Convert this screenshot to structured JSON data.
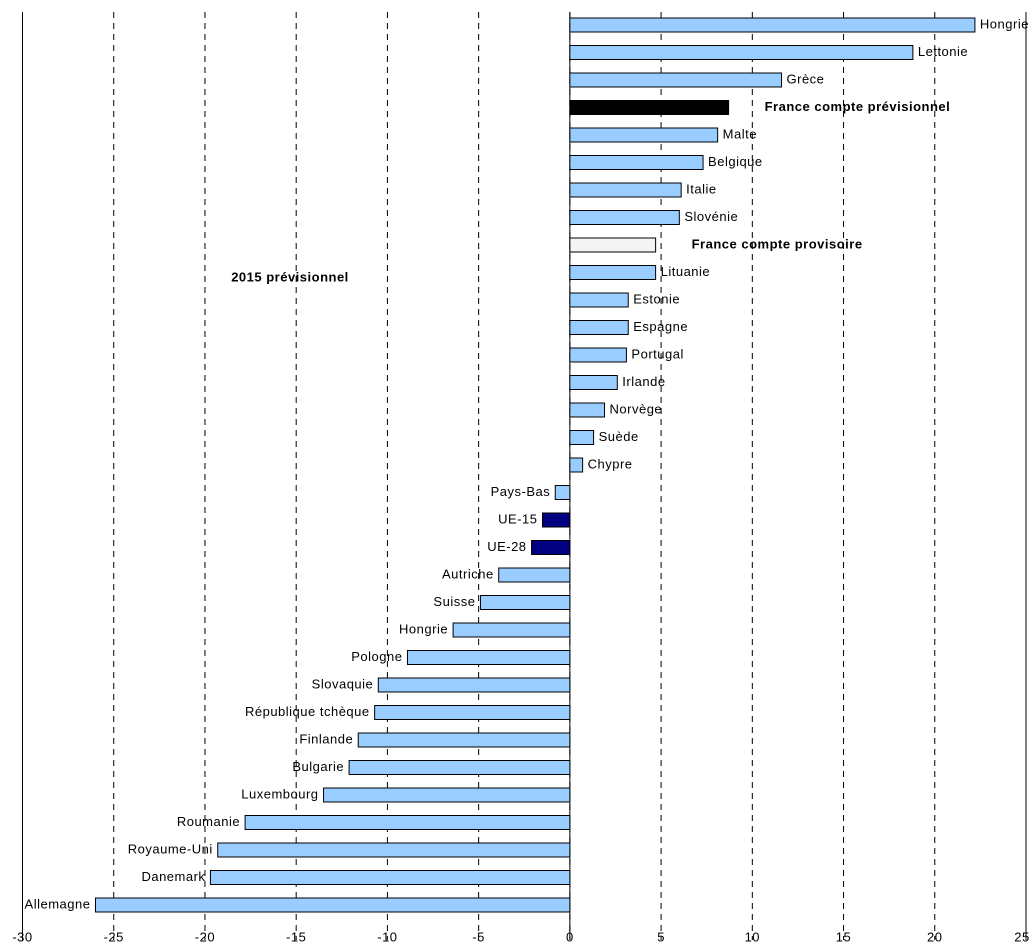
{
  "chart_data": {
    "type": "hbar",
    "annotation": "2015 prévisionnel",
    "categories": [
      "Hongrie",
      "Lettonie",
      "Grèce",
      "France compte prévisionnel",
      "Malte",
      "Belgique",
      "Italie",
      "Slovénie",
      "France compte provisoire",
      "Lituanie",
      "Estonie",
      "Espagne",
      "Portugal",
      "Irlande",
      "Norvège",
      "Suède",
      "Chypre",
      "Pays-Bas",
      "UE-15",
      "UE-28",
      "Autriche",
      "Suisse",
      "Hongrie",
      "Pologne",
      "Slovaquie",
      "République tchèque",
      "Finlande",
      "Bulgarie",
      "Luxembourg",
      "Roumanie",
      "Royaume-Uni",
      "Danemark",
      "Allemagne"
    ],
    "values": [
      22.2,
      18.8,
      11.6,
      8.7,
      8.1,
      7.3,
      6.1,
      6.0,
      4.7,
      4.7,
      3.2,
      3.2,
      3.1,
      2.6,
      1.9,
      1.3,
      0.7,
      -0.8,
      -1.5,
      -2.1,
      -3.9,
      -4.9,
      -6.4,
      -8.9,
      -10.5,
      -10.7,
      -11.6,
      -12.1,
      -13.5,
      -17.8,
      -19.3,
      -19.7,
      -26.0
    ],
    "colors": [
      "#99ccff",
      "#99ccff",
      "#99ccff",
      "#000000",
      "#99ccff",
      "#99ccff",
      "#99ccff",
      "#99ccff",
      "#f4f4f4",
      "#99ccff",
      "#99ccff",
      "#99ccff",
      "#99ccff",
      "#99ccff",
      "#99ccff",
      "#99ccff",
      "#99ccff",
      "#99ccff",
      "#000080",
      "#000080",
      "#99ccff",
      "#99ccff",
      "#99ccff",
      "#99ccff",
      "#99ccff",
      "#99ccff",
      "#99ccff",
      "#99ccff",
      "#99ccff",
      "#99ccff",
      "#99ccff",
      "#99ccff",
      "#99ccff"
    ],
    "highlighted": [
      false,
      false,
      false,
      true,
      false,
      false,
      false,
      false,
      true,
      false,
      false,
      false,
      false,
      false,
      false,
      false,
      false,
      false,
      false,
      false,
      false,
      false,
      false,
      false,
      false,
      false,
      false,
      false,
      false,
      false,
      false,
      false,
      false
    ],
    "xlim": [
      -30,
      25
    ],
    "xticks": [
      -30,
      -25,
      -20,
      -15,
      -10,
      -5,
      0,
      5,
      10,
      15,
      20,
      25
    ],
    "grid": true
  }
}
